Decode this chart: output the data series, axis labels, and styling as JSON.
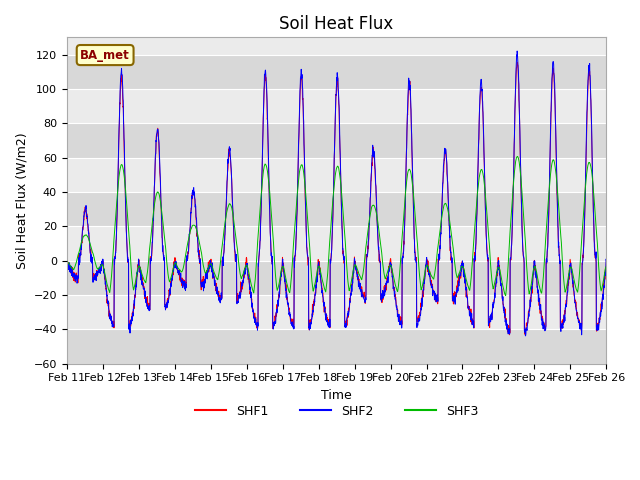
{
  "title": "Soil Heat Flux",
  "ylabel": "Soil Heat Flux (W/m2)",
  "xlabel": "Time",
  "ylim": [
    -60,
    130
  ],
  "yticks": [
    -60,
    -40,
    -20,
    0,
    20,
    40,
    60,
    80,
    100,
    120
  ],
  "date_labels": [
    "Feb 11",
    "Feb 12",
    "Feb 13",
    "Feb 14",
    "Feb 15",
    "Feb 16",
    "Feb 17",
    "Feb 18",
    "Feb 19",
    "Feb 20",
    "Feb 21",
    "Feb 22",
    "Feb 23",
    "Feb 24",
    "Feb 25",
    "Feb 26"
  ],
  "colors": {
    "SHF1": "#FF0000",
    "SHF2": "#0000FF",
    "SHF3": "#00BB00"
  },
  "legend_box_label": "BA_met",
  "legend_box_facecolor": "#FFFFCC",
  "legend_box_edgecolor": "#886600",
  "plot_bg_color": "#EBEBEB",
  "fig_bg_color": "#FFFFFF",
  "title_fontsize": 12,
  "axis_label_fontsize": 9,
  "tick_fontsize": 8,
  "n_days": 15,
  "day_amps": [
    30,
    110,
    78,
    42,
    65,
    110,
    110,
    108,
    65,
    105,
    65,
    105,
    120,
    115,
    113
  ]
}
